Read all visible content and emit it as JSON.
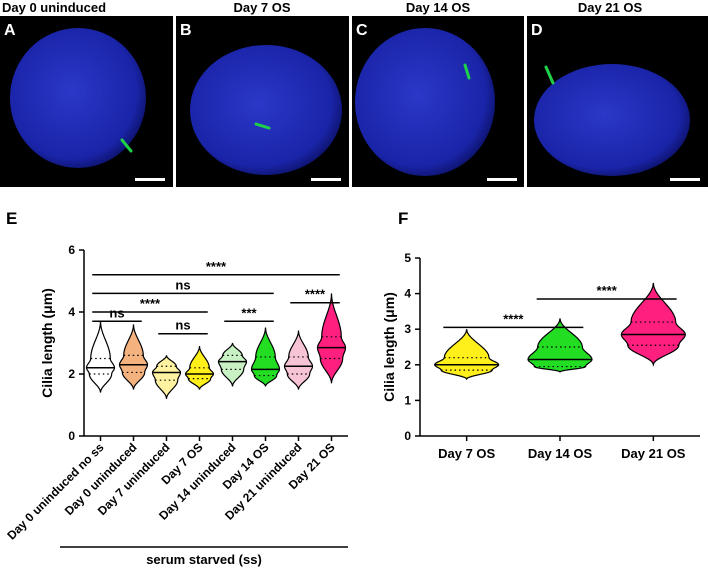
{
  "image_panels": [
    {
      "letter": "A",
      "title": "Day 0 uninduced"
    },
    {
      "letter": "B",
      "title": "Day 7 OS"
    },
    {
      "letter": "C",
      "title": "Day 14 OS"
    },
    {
      "letter": "D",
      "title": "Day 21 OS"
    }
  ],
  "chart_data": [
    {
      "type": "violin",
      "panel_label": "E",
      "y_label": "Cilia length (μm)",
      "categories": [
        "Day 0 uninduced no ss",
        "Day 0 uninduced",
        "Day 7 uninduced",
        "Day 7 OS",
        "Day 14 uninduced",
        "Day 14 OS",
        "Day 21 uninduced",
        "Day 21 OS"
      ],
      "violins": [
        {
          "color": "#ffffff",
          "min": 1.4,
          "q1": 2.0,
          "median": 2.2,
          "q3": 2.5,
          "max": 3.7
        },
        {
          "color": "#f4b27e",
          "min": 1.5,
          "q1": 2.05,
          "median": 2.3,
          "q3": 2.6,
          "max": 3.6
        },
        {
          "color": "#fff2a0",
          "min": 1.2,
          "q1": 1.8,
          "median": 2.05,
          "q3": 2.25,
          "max": 2.6
        },
        {
          "color": "#ffef1a",
          "min": 1.5,
          "q1": 1.85,
          "median": 2.0,
          "q3": 2.2,
          "max": 2.9
        },
        {
          "color": "#c9f2c4",
          "min": 1.6,
          "q1": 2.15,
          "median": 2.4,
          "q3": 2.6,
          "max": 3.0
        },
        {
          "color": "#22dd22",
          "min": 1.6,
          "q1": 1.95,
          "median": 2.15,
          "q3": 2.55,
          "max": 3.5
        },
        {
          "color": "#f7c4d6",
          "min": 1.5,
          "q1": 2.0,
          "median": 2.25,
          "q3": 2.55,
          "max": 3.4
        },
        {
          "color": "#ff1f7f",
          "min": 1.7,
          "q1": 2.5,
          "median": 2.85,
          "q3": 3.2,
          "max": 4.6
        }
      ],
      "ylim": [
        0,
        6
      ],
      "yticks": [
        0,
        2,
        4,
        6
      ],
      "brackets": [
        {
          "from": 0,
          "to": 7,
          "y": 5.2,
          "label": "****"
        },
        {
          "from": 0,
          "to": 5,
          "y": 4.6,
          "label": "ns"
        },
        {
          "from": 0,
          "to": 3,
          "y": 4.0,
          "label": "****"
        },
        {
          "from": 0,
          "to": 1,
          "y": 3.7,
          "label": "ns"
        },
        {
          "from": 2,
          "to": 3,
          "y": 3.3,
          "label": "ns"
        },
        {
          "from": 4,
          "to": 5,
          "y": 3.7,
          "label": "***"
        },
        {
          "from": 6,
          "to": 7,
          "y": 4.3,
          "label": "****"
        }
      ],
      "group_label": "serum starved (ss)"
    },
    {
      "type": "violin",
      "panel_label": "F",
      "y_label": "Cilia length (μm)",
      "categories": [
        "Day 7 OS",
        "Day 14 OS",
        "Day 21 OS"
      ],
      "violins": [
        {
          "color": "#ffef1a",
          "min": 1.6,
          "q1": 1.85,
          "median": 2.0,
          "q3": 2.2,
          "max": 3.0
        },
        {
          "color": "#22dd22",
          "min": 1.8,
          "q1": 1.95,
          "median": 2.15,
          "q3": 2.5,
          "max": 3.3
        },
        {
          "color": "#ff1f7f",
          "min": 2.0,
          "q1": 2.55,
          "median": 2.85,
          "q3": 3.2,
          "max": 4.3
        }
      ],
      "ylim": [
        0,
        5
      ],
      "yticks": [
        0,
        1,
        2,
        3,
        4,
        5
      ],
      "brackets": [
        {
          "from": 0,
          "to": 1,
          "y": 3.05,
          "label": "****"
        },
        {
          "from": 1,
          "to": 2,
          "y": 3.85,
          "label": "****"
        }
      ]
    }
  ]
}
